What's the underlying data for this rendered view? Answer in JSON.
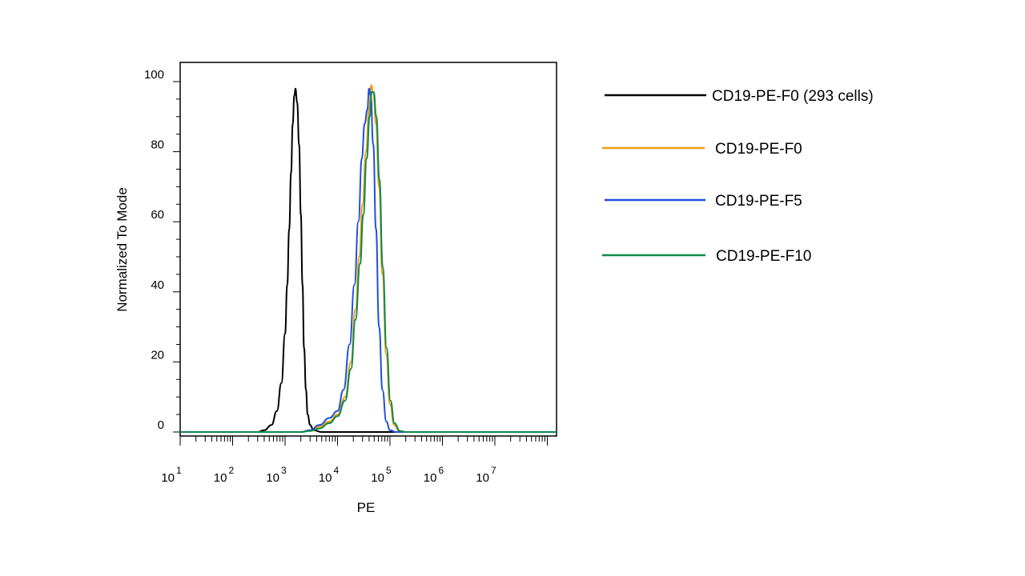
{
  "chart_data": {
    "type": "line",
    "xlabel": "PE",
    "ylabel": "Normalized To Mode",
    "x_scale": "log",
    "xlim": [
      10,
      150000000
    ],
    "ylim": [
      0,
      107
    ],
    "x_ticks": [
      {
        "base": "10",
        "exp": "1",
        "value": 10
      },
      {
        "base": "10",
        "exp": "2",
        "value": 100
      },
      {
        "base": "10",
        "exp": "3",
        "value": 1000
      },
      {
        "base": "10",
        "exp": "4",
        "value": 10000
      },
      {
        "base": "10",
        "exp": "5",
        "value": 100000
      },
      {
        "base": "10",
        "exp": "6",
        "value": 1000000
      },
      {
        "base": "10",
        "exp": "7",
        "value": 10000000
      }
    ],
    "y_ticks": [
      0,
      20,
      40,
      60,
      80,
      100
    ],
    "grid": false,
    "legend_position": "right",
    "series": [
      {
        "name": "CD19-PE-F0 (293 cells)",
        "color": "#000000",
        "points": [
          [
            10,
            0
          ],
          [
            300,
            0
          ],
          [
            400,
            0.5
          ],
          [
            550,
            2
          ],
          [
            700,
            6
          ],
          [
            850,
            14
          ],
          [
            1000,
            28
          ],
          [
            1100,
            42
          ],
          [
            1200,
            58
          ],
          [
            1300,
            74
          ],
          [
            1400,
            88
          ],
          [
            1500,
            96
          ],
          [
            1580,
            98
          ],
          [
            1700,
            94
          ],
          [
            1850,
            82
          ],
          [
            2000,
            62
          ],
          [
            2150,
            42
          ],
          [
            2300,
            24
          ],
          [
            2500,
            12
          ],
          [
            2700,
            5
          ],
          [
            3000,
            2
          ],
          [
            3500,
            0.5
          ],
          [
            5000,
            0
          ],
          [
            150000000,
            0
          ]
        ]
      },
      {
        "name": "CD19-PE-F0",
        "color": "#F39C12",
        "points": [
          [
            10,
            0
          ],
          [
            2000,
            0
          ],
          [
            3000,
            0.5
          ],
          [
            4500,
            1.5
          ],
          [
            7000,
            3
          ],
          [
            10000,
            5
          ],
          [
            14000,
            10
          ],
          [
            18000,
            20
          ],
          [
            22000,
            35
          ],
          [
            26000,
            50
          ],
          [
            30000,
            65
          ],
          [
            35000,
            80
          ],
          [
            40000,
            92
          ],
          [
            44000,
            99
          ],
          [
            48000,
            97
          ],
          [
            54000,
            88
          ],
          [
            62000,
            70
          ],
          [
            72000,
            45
          ],
          [
            85000,
            22
          ],
          [
            100000,
            8
          ],
          [
            120000,
            2
          ],
          [
            150000,
            0.3
          ],
          [
            200000,
            0
          ],
          [
            150000000,
            0
          ]
        ]
      },
      {
        "name": "CD19-PE-F5",
        "color": "#1F4FE0",
        "points": [
          [
            10,
            0
          ],
          [
            2000,
            0
          ],
          [
            3000,
            0.5
          ],
          [
            4500,
            2
          ],
          [
            7000,
            4
          ],
          [
            10000,
            6
          ],
          [
            13000,
            12
          ],
          [
            17000,
            25
          ],
          [
            21000,
            42
          ],
          [
            25000,
            60
          ],
          [
            29000,
            78
          ],
          [
            33000,
            88
          ],
          [
            37000,
            92
          ],
          [
            40000,
            98
          ],
          [
            43000,
            96
          ],
          [
            48000,
            82
          ],
          [
            54000,
            58
          ],
          [
            62000,
            30
          ],
          [
            72000,
            12
          ],
          [
            85000,
            3
          ],
          [
            100000,
            0.5
          ],
          [
            130000,
            0
          ],
          [
            150000000,
            0
          ]
        ]
      },
      {
        "name": "CD19-PE-F10",
        "color": "#0E8A4A",
        "points": [
          [
            10,
            0
          ],
          [
            2000,
            0
          ],
          [
            3000,
            0.3
          ],
          [
            4500,
            1
          ],
          [
            7000,
            2.5
          ],
          [
            10000,
            4.5
          ],
          [
            14000,
            9
          ],
          [
            18000,
            18
          ],
          [
            22000,
            32
          ],
          [
            27000,
            48
          ],
          [
            31000,
            62
          ],
          [
            36000,
            78
          ],
          [
            41000,
            90
          ],
          [
            45000,
            97
          ],
          [
            49000,
            97
          ],
          [
            55000,
            90
          ],
          [
            63000,
            72
          ],
          [
            73000,
            47
          ],
          [
            86000,
            24
          ],
          [
            102000,
            9
          ],
          [
            122000,
            2.5
          ],
          [
            155000,
            0.3
          ],
          [
            200000,
            0
          ],
          [
            150000000,
            0
          ]
        ]
      }
    ]
  }
}
